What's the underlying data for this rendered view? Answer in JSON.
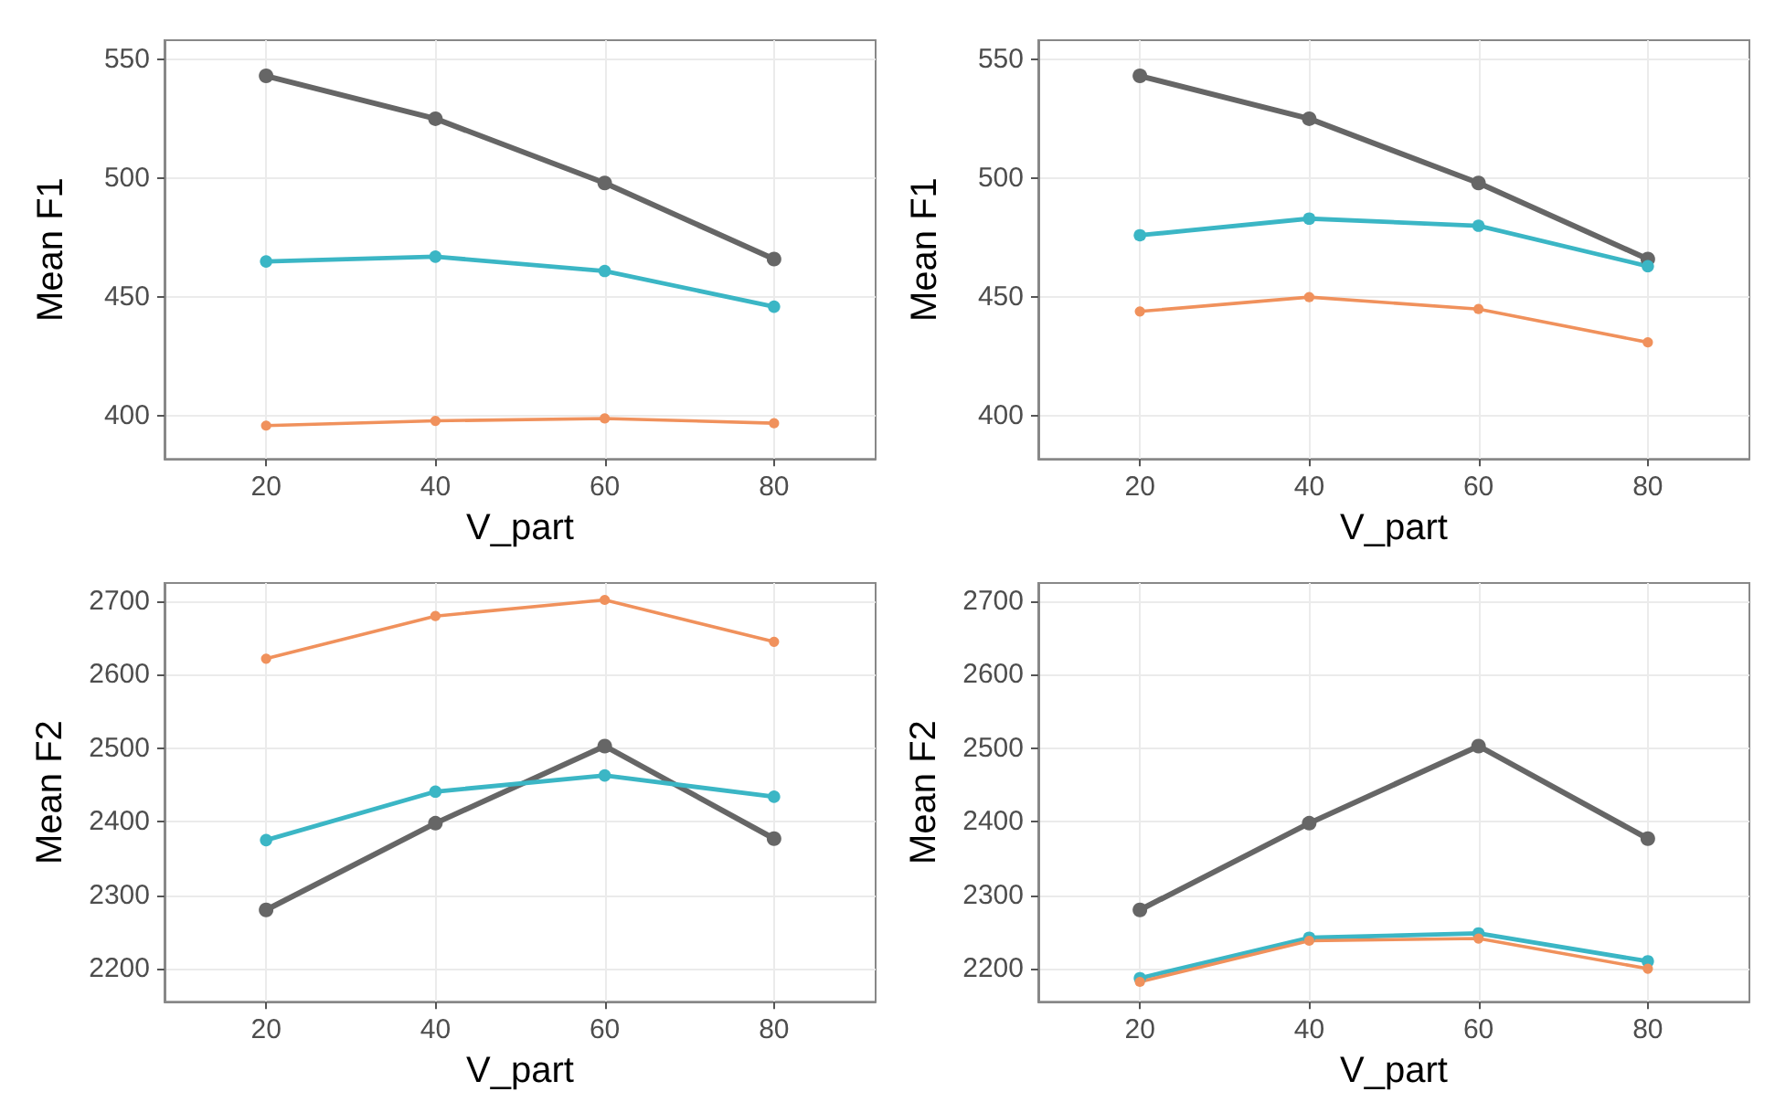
{
  "chart_data": [
    {
      "type": "line",
      "xlabel": "V_part",
      "ylabel": "Mean F1",
      "x": [
        20,
        40,
        60,
        80
      ],
      "xlim": [
        8,
        92
      ],
      "xticks": [
        20,
        40,
        60,
        80
      ],
      "ylim": [
        382,
        558
      ],
      "yticks": [
        400,
        450,
        500,
        550
      ],
      "grid": true,
      "marker": "circle",
      "line_style": "solid",
      "series": [
        {
          "color": "#666666",
          "values": [
            543,
            525,
            498,
            466
          ]
        },
        {
          "color": "#3bb6c5",
          "values": [
            465,
            467,
            461,
            446
          ]
        },
        {
          "color": "#f0915c",
          "values": [
            396,
            398,
            399,
            397
          ]
        }
      ]
    },
    {
      "type": "line",
      "xlabel": "V_part",
      "ylabel": "Mean F1",
      "x": [
        20,
        40,
        60,
        80
      ],
      "xlim": [
        8,
        92
      ],
      "xticks": [
        20,
        40,
        60,
        80
      ],
      "ylim": [
        382,
        558
      ],
      "yticks": [
        400,
        450,
        500,
        550
      ],
      "grid": true,
      "marker": "circle",
      "line_style": "solid",
      "series": [
        {
          "color": "#666666",
          "values": [
            543,
            525,
            498,
            466
          ]
        },
        {
          "color": "#3bb6c5",
          "values": [
            476,
            483,
            480,
            463
          ]
        },
        {
          "color": "#f0915c",
          "values": [
            444,
            450,
            445,
            431
          ]
        }
      ]
    },
    {
      "type": "line",
      "xlabel": "V_part",
      "ylabel": "Mean F2",
      "x": [
        20,
        40,
        60,
        80
      ],
      "xlim": [
        8,
        92
      ],
      "xticks": [
        20,
        40,
        60,
        80
      ],
      "ylim": [
        2155,
        2725
      ],
      "yticks": [
        2200,
        2300,
        2400,
        2500,
        2600,
        2700
      ],
      "grid": true,
      "marker": "circle",
      "line_style": "solid",
      "series": [
        {
          "color": "#666666",
          "values": [
            2280,
            2398,
            2503,
            2377
          ]
        },
        {
          "color": "#3bb6c5",
          "values": [
            2375,
            2441,
            2463,
            2434
          ]
        },
        {
          "color": "#f0915c",
          "values": [
            2622,
            2680,
            2702,
            2645
          ]
        }
      ]
    },
    {
      "type": "line",
      "xlabel": "V_part",
      "ylabel": "Mean F2",
      "x": [
        20,
        40,
        60,
        80
      ],
      "xlim": [
        8,
        92
      ],
      "xticks": [
        20,
        40,
        60,
        80
      ],
      "ylim": [
        2155,
        2725
      ],
      "yticks": [
        2200,
        2300,
        2400,
        2500,
        2600,
        2700
      ],
      "grid": true,
      "marker": "circle",
      "line_style": "solid",
      "series": [
        {
          "color": "#666666",
          "values": [
            2280,
            2398,
            2503,
            2377
          ]
        },
        {
          "color": "#3bb6c5",
          "values": [
            2187,
            2242,
            2248,
            2210
          ]
        },
        {
          "color": "#f0915c",
          "values": [
            2182,
            2238,
            2241,
            2200
          ]
        }
      ]
    }
  ]
}
